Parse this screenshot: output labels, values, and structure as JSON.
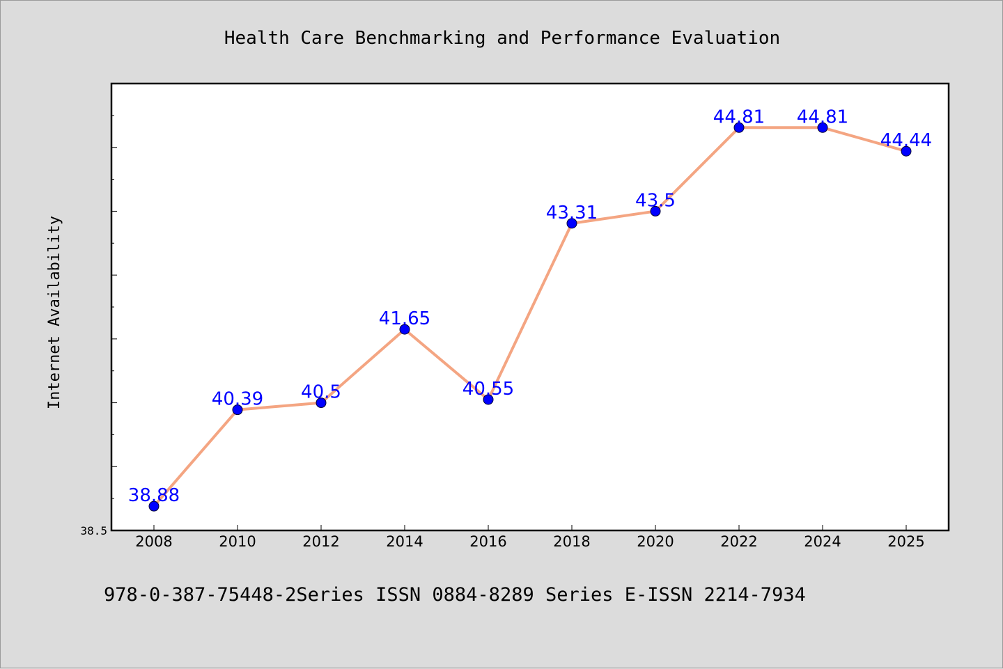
{
  "chart_data": {
    "type": "line",
    "title": "Health Care Benchmarking and Performance Evaluation",
    "xlabel": "",
    "ylabel": "Internet Availability",
    "categories": [
      "2008",
      "2010",
      "2012",
      "2014",
      "2016",
      "2018",
      "2020",
      "2022",
      "2024",
      "2025"
    ],
    "series": [
      {
        "values": [
          38.88,
          40.39,
          40.5,
          41.65,
          40.55,
          43.31,
          43.5,
          44.81,
          44.81,
          44.44
        ],
        "data_labels": [
          "38.88",
          "40.39",
          "40.5",
          "41.65",
          "40.55",
          "43.31",
          "43.5",
          "44.81",
          "44.81",
          "44.44"
        ],
        "line_color": "#f4a582",
        "marker_color": "#0000ff"
      }
    ],
    "ylim": [
      38.5,
      45.5
    ],
    "ytick_labels": [
      "38.5"
    ],
    "grid": false,
    "legend": "none"
  },
  "footer": {
    "text": "978-0-387-75448-2Series ISSN 0884-8289 Series E-ISSN 2214-7934"
  },
  "colors": {
    "background": "#dcdcdc",
    "plot_background": "#ffffff",
    "line": "#f4a582",
    "marker": "#0000ff",
    "data_label": "#0000ff"
  }
}
